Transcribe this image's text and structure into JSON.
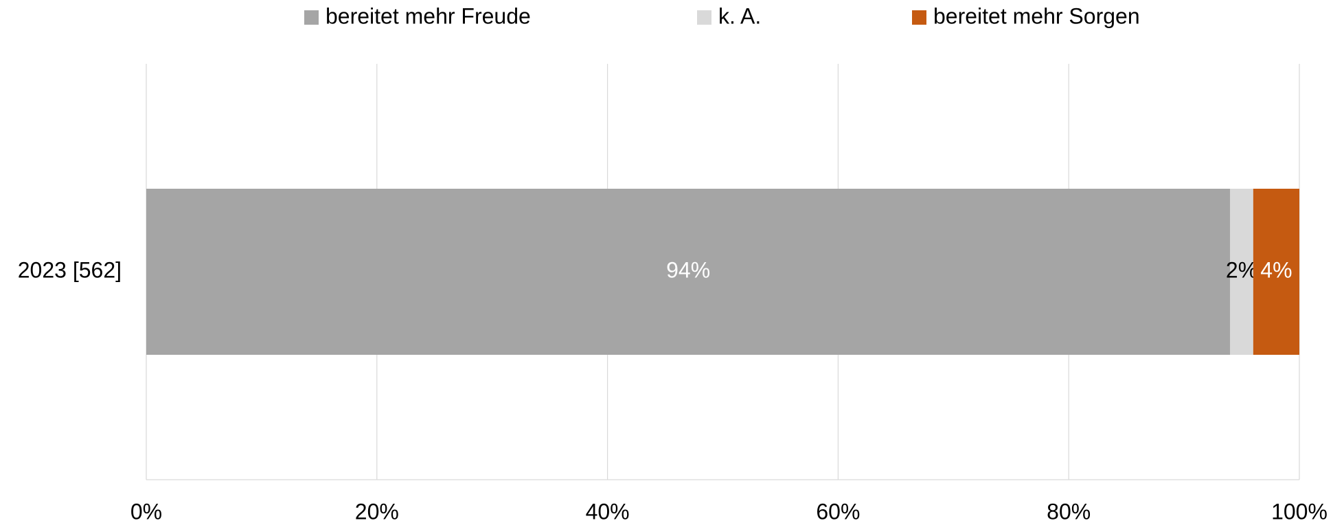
{
  "chart_data": {
    "type": "bar",
    "orientation": "horizontal",
    "stacked": true,
    "categories": [
      "2023 [562]"
    ],
    "series": [
      {
        "name": "bereitet mehr Freude",
        "color": "#a5a5a5",
        "label_color": "#ffffff",
        "values": [
          94
        ],
        "value_labels": [
          "94%"
        ]
      },
      {
        "name": "k. A.",
        "color": "#d9d9d9",
        "label_color": "#000000",
        "values": [
          2
        ],
        "value_labels": [
          "2%"
        ]
      },
      {
        "name": "bereitet mehr Sorgen",
        "color": "#c55a11",
        "label_color": "#ffffff",
        "values": [
          4
        ],
        "value_labels": [
          "4%"
        ]
      }
    ],
    "xlim": [
      0,
      100
    ],
    "xticks": [
      {
        "value": 0,
        "label": "0%"
      },
      {
        "value": 20,
        "label": "20%"
      },
      {
        "value": 40,
        "label": "40%"
      },
      {
        "value": 60,
        "label": "60%"
      },
      {
        "value": 80,
        "label": "80%"
      },
      {
        "value": 100,
        "label": "100%"
      }
    ],
    "grid": true,
    "legend": "top"
  }
}
